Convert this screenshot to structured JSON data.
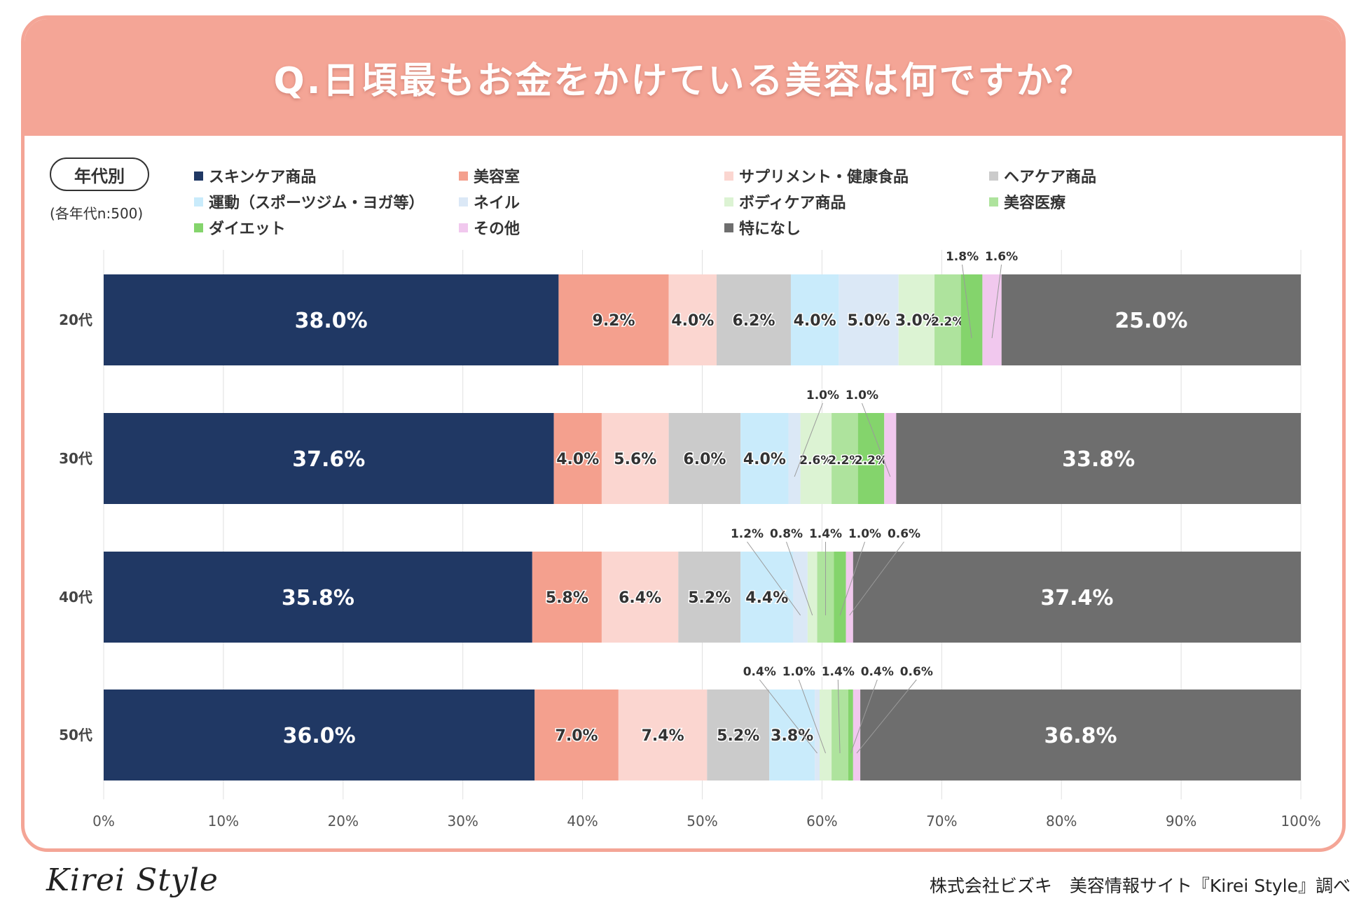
{
  "title": "Q.日頃最もお金をかけている美容は何ですか？",
  "badge_label": "年代別",
  "sample_note": "(各年代n:500)",
  "footer": {
    "logo_text": "Kirei Style",
    "credit": "株式会社ビズキ　美容情報サイト『Kirei Style』調べ"
  },
  "colors": {
    "header_bg": "#f4a596",
    "grid": "#e0e0e0"
  },
  "chart_data": {
    "type": "bar",
    "orientation": "horizontal-stacked-100",
    "title": "Q.日頃最もお金をかけている美容は何ですか？",
    "xlabel": "",
    "ylabel": "",
    "xlim": [
      0,
      100
    ],
    "x_ticks": [
      "0%",
      "10%",
      "20%",
      "30%",
      "40%",
      "50%",
      "60%",
      "70%",
      "80%",
      "90%",
      "100%"
    ],
    "categories": [
      "20代",
      "30代",
      "40代",
      "50代"
    ],
    "legend_position": "top",
    "grid": true,
    "series": [
      {
        "name": "スキンケア商品",
        "color": "#203864",
        "values": [
          38.0,
          37.6,
          35.8,
          36.0
        ]
      },
      {
        "name": "美容室",
        "color": "#f4a08e",
        "values": [
          9.2,
          4.0,
          5.8,
          7.0
        ]
      },
      {
        "name": "サプリメント・健康食品",
        "color": "#fbd6d0",
        "values": [
          4.0,
          5.6,
          6.4,
          7.4
        ]
      },
      {
        "name": "ヘアケア商品",
        "color": "#cbcbcb",
        "values": [
          6.2,
          6.0,
          5.2,
          5.2
        ]
      },
      {
        "name": "運動（スポーツジム・ヨガ等）",
        "color": "#c9ebfb",
        "values": [
          4.0,
          4.0,
          4.4,
          3.8
        ]
      },
      {
        "name": "ネイル",
        "color": "#dbe8f6",
        "values": [
          5.0,
          1.0,
          1.2,
          0.4
        ]
      },
      {
        "name": "ボディケア商品",
        "color": "#dcf3d3",
        "values": [
          3.0,
          2.6,
          0.8,
          1.0
        ]
      },
      {
        "name": "美容医療",
        "color": "#aee39d",
        "values": [
          2.2,
          2.2,
          1.4,
          1.4
        ]
      },
      {
        "name": "ダイエット",
        "color": "#84d46c",
        "values": [
          1.8,
          2.2,
          1.0,
          0.4
        ]
      },
      {
        "name": "その他",
        "color": "#f1c8ee",
        "values": [
          1.6,
          1.0,
          0.6,
          0.6
        ]
      },
      {
        "name": "特になし",
        "color": "#6e6e6e",
        "values": [
          25.0,
          33.8,
          37.4,
          36.8
        ]
      }
    ]
  }
}
